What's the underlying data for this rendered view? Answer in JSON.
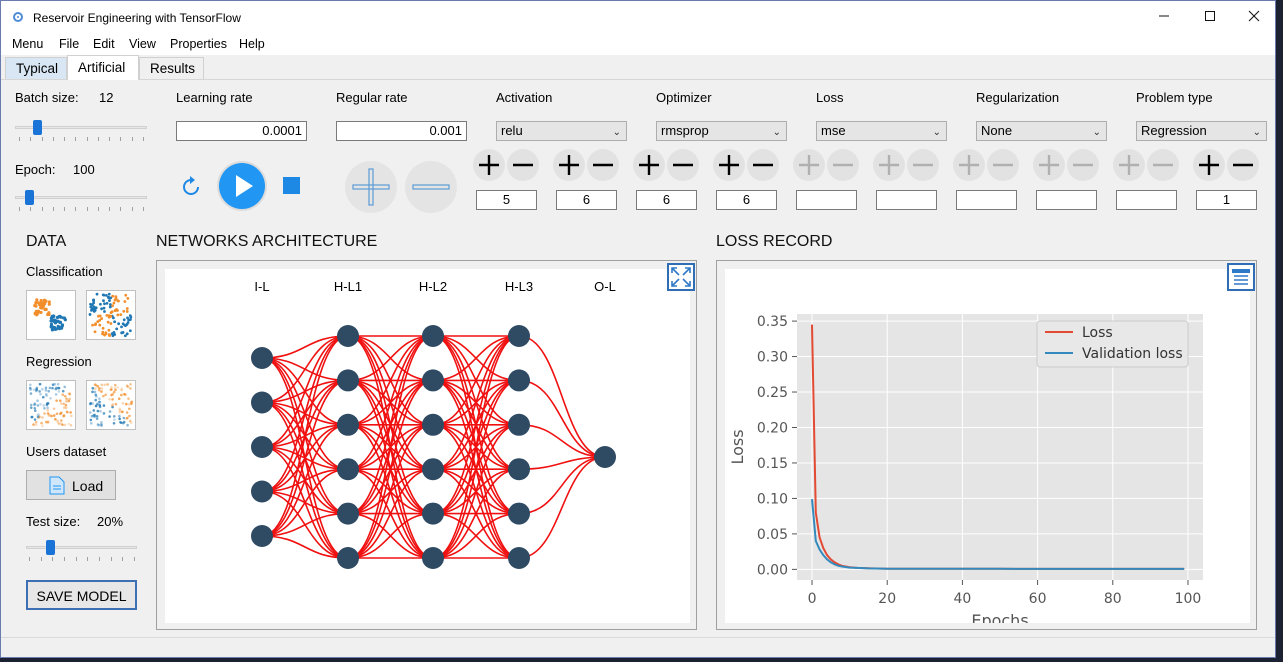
{
  "window": {
    "title": "Reservoir Engineering with TensorFlow",
    "minimize_icon": "minimize-icon",
    "maximize_icon": "maximize-icon",
    "close_icon": "close-icon"
  },
  "menu": [
    "Menu",
    "File",
    "Edit",
    "View",
    "Properties",
    "Help"
  ],
  "tabs": [
    {
      "label": "Typical"
    },
    {
      "label": "Artificial"
    },
    {
      "label": "Results"
    }
  ],
  "controls": {
    "batch_size_label": "Batch size:",
    "batch_size_value": "12",
    "batch_size_fraction": 0.15,
    "epoch_label": "Epoch:",
    "epoch_value": "100",
    "epoch_fraction": 0.08,
    "learning_rate_label": "Learning rate",
    "learning_rate_value": "0.0001",
    "regular_rate_label": "Regular rate",
    "regular_rate_value": "0.001",
    "activation_label": "Activation",
    "activation_value": "relu",
    "optimizer_label": "Optimizer",
    "optimizer_value": "rmsprop",
    "loss_label": "Loss",
    "loss_value": "mse",
    "regularization_label": "Regularization",
    "regularization_value": "None",
    "problem_type_label": "Problem type",
    "problem_type_value": "Regression"
  },
  "layer_counts": [
    "5",
    "6",
    "6",
    "6",
    "",
    "",
    "",
    "",
    "",
    "1"
  ],
  "layer_enabled": [
    true,
    true,
    true,
    true,
    false,
    false,
    false,
    false,
    false,
    true
  ],
  "data_panel": {
    "title": "DATA",
    "classification_label": "Classification",
    "regression_label": "Regression",
    "users_dataset_label": "Users dataset",
    "load_button": "Load",
    "test_size_label": "Test size:",
    "test_size_value": "20%",
    "test_size_fraction": 0.2,
    "save_model_button": "SAVE MODEL"
  },
  "network": {
    "title": "NETWORKS ARCHITECTURE",
    "layers": [
      {
        "label": "I-L",
        "nodes": 5
      },
      {
        "label": "H-L1",
        "nodes": 6
      },
      {
        "label": "H-L2",
        "nodes": 6
      },
      {
        "label": "H-L3",
        "nodes": 6
      },
      {
        "label": "O-L",
        "nodes": 1
      }
    ],
    "node_color": "#2f4a63",
    "edge_color": "#f01010"
  },
  "loss_panel": {
    "title": "LOSS RECORD"
  },
  "chart_data": {
    "type": "line",
    "title": "",
    "xlabel": "Epochs",
    "ylabel": "Loss",
    "xlim": [
      -4,
      104
    ],
    "ylim": [
      -0.015,
      0.36
    ],
    "xticks": [
      0,
      20,
      40,
      60,
      80,
      100
    ],
    "yticks": [
      0.0,
      0.05,
      0.1,
      0.15,
      0.2,
      0.25,
      0.3,
      0.35
    ],
    "ytick_labels": [
      "0.00",
      "0.05",
      "0.10",
      "0.15",
      "0.20",
      "0.25",
      "0.30",
      "0.35"
    ],
    "xtick_labels": [
      "0",
      "20",
      "40",
      "60",
      "80",
      "100"
    ],
    "grid": true,
    "legend": "top-right",
    "series": [
      {
        "name": "Loss",
        "color": "#e24a33",
        "x": [
          0,
          1,
          2,
          3,
          4,
          5,
          6,
          7,
          8,
          10,
          12,
          15,
          20,
          30,
          40,
          50,
          60,
          70,
          80,
          90,
          99
        ],
        "y": [
          0.345,
          0.08,
          0.045,
          0.03,
          0.02,
          0.014,
          0.01,
          0.007,
          0.005,
          0.003,
          0.002,
          0.0015,
          0.001,
          0.001,
          0.0008,
          0.0008,
          0.0007,
          0.0007,
          0.0007,
          0.0007,
          0.0007
        ]
      },
      {
        "name": "Validation loss",
        "color": "#348abd",
        "x": [
          0,
          1,
          2,
          3,
          4,
          5,
          6,
          7,
          8,
          10,
          12,
          15,
          20,
          30,
          40,
          50,
          60,
          70,
          80,
          90,
          99
        ],
        "y": [
          0.099,
          0.04,
          0.028,
          0.02,
          0.014,
          0.01,
          0.007,
          0.005,
          0.004,
          0.0025,
          0.002,
          0.0014,
          0.001,
          0.0009,
          0.0008,
          0.0008,
          0.0007,
          0.0007,
          0.0007,
          0.0007,
          0.0007
        ]
      }
    ]
  }
}
